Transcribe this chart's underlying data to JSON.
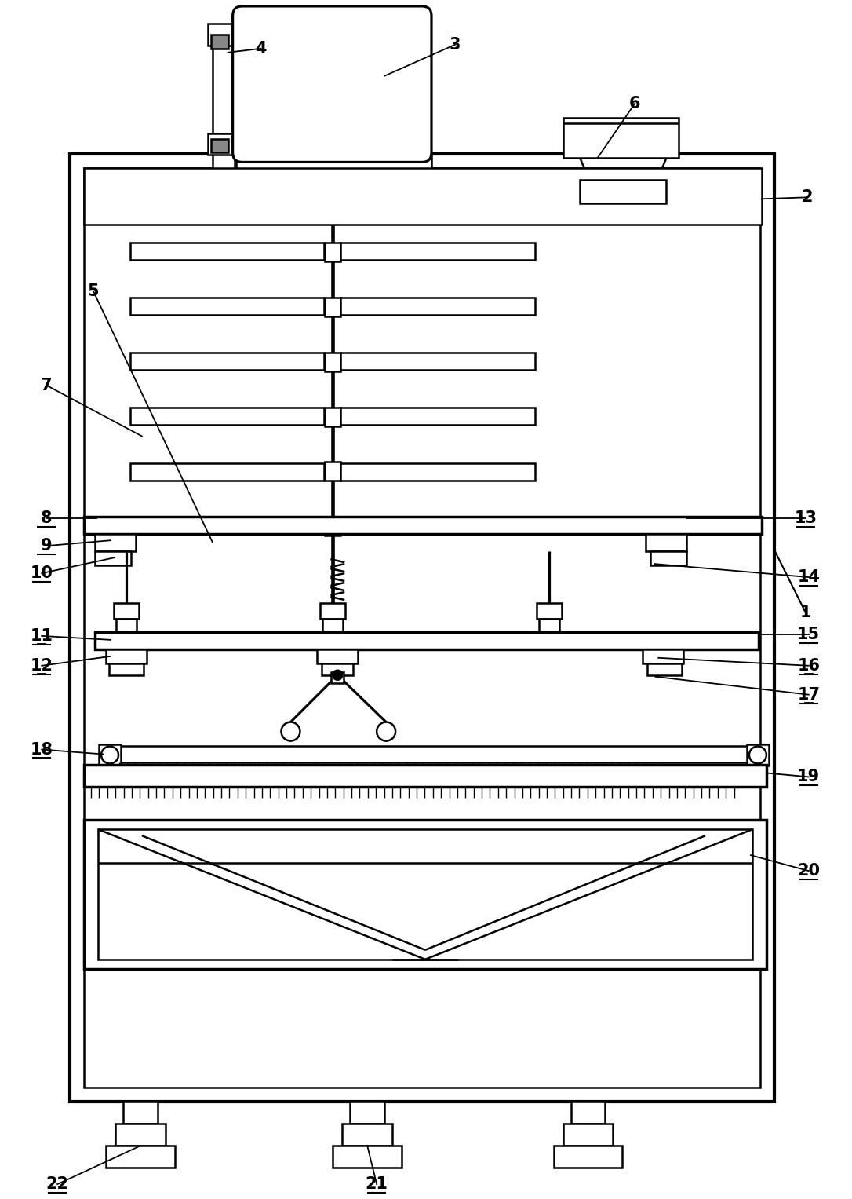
{
  "bg_color": "#ffffff",
  "lc": "#000000",
  "lw": 1.8,
  "tlw": 3.0,
  "figw": 10.86,
  "figh": 15.27,
  "dpi": 100
}
